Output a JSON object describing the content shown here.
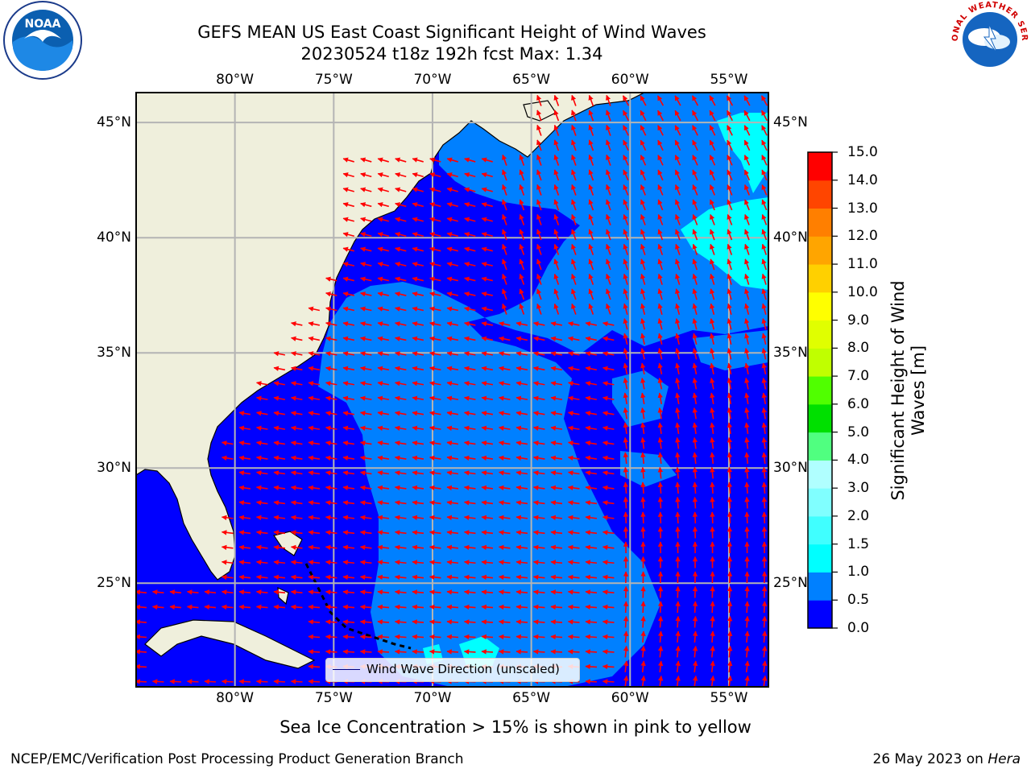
{
  "title": {
    "line1": "GEFS MEAN US East Coast Significant Height of Wind Waves",
    "line2": "20230524 t18z 192h fcst   Max: 1.34"
  },
  "logos": {
    "left": "NOAA",
    "right": "NATIONAL WEATHER SERVICE"
  },
  "map": {
    "lon_range": [
      -85,
      -53
    ],
    "lat_range": [
      20.5,
      46.3
    ],
    "lon_ticks": [
      "80°W",
      "75°W",
      "70°W",
      "65°W",
      "60°W",
      "55°W"
    ],
    "lat_ticks": [
      "45°N",
      "40°N",
      "35°N",
      "30°N",
      "25°N"
    ],
    "lon_tick_values": [
      -80,
      -75,
      -70,
      -65,
      -60,
      -55
    ],
    "lat_tick_values": [
      45,
      40,
      35,
      30,
      25
    ],
    "land_color": "#efefdc",
    "gridline_color": "#b4b4b4",
    "arrow_color": "#ff0000"
  },
  "legend": {
    "label": "Wind Wave Direction (unscaled)"
  },
  "colorbar": {
    "title_line1": "Significant Height of Wind",
    "title_line2": "Waves [m]",
    "labels": [
      "15.0",
      "14.0",
      "13.0",
      "12.0",
      "11.0",
      "10.0",
      "9.0",
      "8.0",
      "7.0",
      "6.0",
      "5.0",
      "4.0",
      "3.0",
      "2.0",
      "1.5",
      "1.0",
      "0.5",
      "0.0"
    ],
    "levels": [
      0.0,
      0.5,
      1.0,
      1.5,
      2.0,
      3.0,
      4.0,
      5.0,
      6.0,
      7.0,
      8.0,
      9.0,
      10.0,
      11.0,
      12.0,
      13.0,
      14.0,
      15.0
    ],
    "colors": [
      "#0000ff",
      "#0080ff",
      "#00ffff",
      "#40ffff",
      "#80ffff",
      "#b0ffff",
      "#50ff80",
      "#00e000",
      "#50ff00",
      "#c0ff00",
      "#e0ff00",
      "#ffff00",
      "#ffd000",
      "#ffa500",
      "#ff7f00",
      "#ff4500",
      "#ff0000"
    ]
  },
  "caption": "Sea Ice Concentration > 15% is shown in pink to yellow",
  "footer": {
    "left": "NCEP/EMC/Verification Post Processing Product Generation Branch",
    "right_date": "26 May 2023 on",
    "right_machine": "Hera"
  }
}
